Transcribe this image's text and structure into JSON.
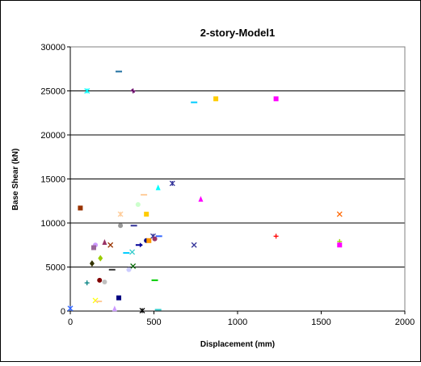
{
  "chart_data": {
    "type": "scatter",
    "title": "2-story-Model1",
    "xlabel": "Displacement (mm)",
    "ylabel": "Base Shear (kN)",
    "xlim": [
      0,
      2000
    ],
    "ylim": [
      0,
      30000
    ],
    "x_ticks": [
      "0",
      "500",
      "1000",
      "1500",
      "2000"
    ],
    "y_ticks": [
      "0",
      "5000",
      "10000",
      "15000",
      "20000",
      "25000",
      "30000"
    ],
    "grid": "horizontal",
    "legend": "none",
    "plot_area_border": "#808080",
    "points": [
      {
        "x": 290,
        "y": 27200,
        "marker": "dash",
        "color": "#1F6FA0"
      },
      {
        "x": 100,
        "y": 25000,
        "marker": "asterisk",
        "color": "#00FFFF"
      },
      {
        "x": 375,
        "y": 25000,
        "marker": "plus-x",
        "color": "#660066"
      },
      {
        "x": 870,
        "y": 24100,
        "marker": "square",
        "color": "#FFCC00"
      },
      {
        "x": 740,
        "y": 23700,
        "marker": "dash",
        "color": "#00CCFF"
      },
      {
        "x": 1230,
        "y": 24100,
        "marker": "square",
        "color": "#FF00FF"
      },
      {
        "x": 610,
        "y": 14500,
        "marker": "asterisk",
        "color": "#333399"
      },
      {
        "x": 525,
        "y": 14000,
        "marker": "triangle",
        "color": "#00FFFF"
      },
      {
        "x": 440,
        "y": 13200,
        "marker": "dash",
        "color": "#FFCC99"
      },
      {
        "x": 780,
        "y": 12700,
        "marker": "triangle",
        "color": "#FF00FF"
      },
      {
        "x": 405,
        "y": 12100,
        "marker": "circle",
        "color": "#CCFFCC"
      },
      {
        "x": 60,
        "y": 11700,
        "marker": "square",
        "color": "#993300"
      },
      {
        "x": 300,
        "y": 11000,
        "marker": "asterisk",
        "color": "#FFCC99"
      },
      {
        "x": 455,
        "y": 11000,
        "marker": "square",
        "color": "#FFCC00"
      },
      {
        "x": 1610,
        "y": 11000,
        "marker": "x",
        "color": "#FF6600"
      },
      {
        "x": 300,
        "y": 9700,
        "marker": "circle",
        "color": "#999999"
      },
      {
        "x": 380,
        "y": 9700,
        "marker": "dash",
        "color": "#333399"
      },
      {
        "x": 1230,
        "y": 8500,
        "marker": "plus",
        "color": "#FF0000"
      },
      {
        "x": 495,
        "y": 8500,
        "marker": "asterisk",
        "color": "#333399"
      },
      {
        "x": 530,
        "y": 8500,
        "marker": "dash",
        "color": "#3366FF"
      },
      {
        "x": 455,
        "y": 8000,
        "marker": "circle",
        "color": "#000080"
      },
      {
        "x": 470,
        "y": 8000,
        "marker": "square",
        "color": "#FF9900"
      },
      {
        "x": 505,
        "y": 8200,
        "marker": "circle",
        "color": "#993366"
      },
      {
        "x": 415,
        "y": 7500,
        "marker": "arrow",
        "color": "#000099"
      },
      {
        "x": 1610,
        "y": 7900,
        "marker": "plus",
        "color": "#99CC00"
      },
      {
        "x": 1610,
        "y": 7500,
        "marker": "square",
        "color": "#FF00FF"
      },
      {
        "x": 740,
        "y": 7500,
        "marker": "x",
        "color": "#333399"
      },
      {
        "x": 240,
        "y": 7500,
        "marker": "x",
        "color": "#993300"
      },
      {
        "x": 205,
        "y": 7800,
        "marker": "triangle",
        "color": "#993366"
      },
      {
        "x": 150,
        "y": 7500,
        "marker": "circle",
        "color": "#CC99FF"
      },
      {
        "x": 140,
        "y": 7200,
        "marker": "square",
        "color": "#996699"
      },
      {
        "x": 370,
        "y": 6700,
        "marker": "x",
        "color": "#33CCCC"
      },
      {
        "x": 335,
        "y": 6600,
        "marker": "dash",
        "color": "#00CCFF"
      },
      {
        "x": 180,
        "y": 6000,
        "marker": "diamond",
        "color": "#99CC00"
      },
      {
        "x": 130,
        "y": 5400,
        "marker": "diamond",
        "color": "#333300"
      },
      {
        "x": 375,
        "y": 5100,
        "marker": "x",
        "color": "#006600"
      },
      {
        "x": 250,
        "y": 4700,
        "marker": "dash",
        "color": "#333333"
      },
      {
        "x": 350,
        "y": 4700,
        "marker": "circle",
        "color": "#CCCCFF"
      },
      {
        "x": 505,
        "y": 3500,
        "marker": "dash",
        "color": "#00CC00"
      },
      {
        "x": 175,
        "y": 3500,
        "marker": "circle",
        "color": "#800000"
      },
      {
        "x": 205,
        "y": 3300,
        "marker": "circle",
        "color": "#C0C0C0"
      },
      {
        "x": 100,
        "y": 3200,
        "marker": "plus",
        "color": "#008080"
      },
      {
        "x": 290,
        "y": 1500,
        "marker": "square",
        "color": "#000080"
      },
      {
        "x": 150,
        "y": 1200,
        "marker": "x",
        "color": "#FFFF00"
      },
      {
        "x": 170,
        "y": 1100,
        "marker": "dash",
        "color": "#FFCC99"
      },
      {
        "x": 0,
        "y": 300,
        "marker": "asterisk",
        "color": "#3366FF"
      },
      {
        "x": 265,
        "y": 250,
        "marker": "triangle",
        "color": "#CC99FF"
      },
      {
        "x": 430,
        "y": 50,
        "marker": "asterisk",
        "color": "#000000"
      },
      {
        "x": 525,
        "y": 150,
        "marker": "dash",
        "color": "#33CCCC"
      }
    ]
  }
}
